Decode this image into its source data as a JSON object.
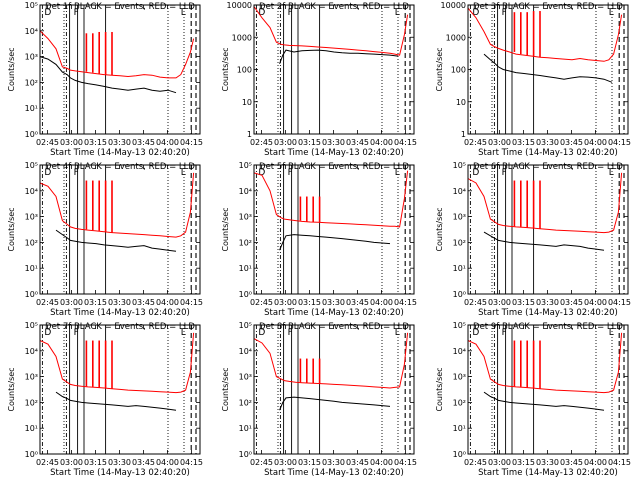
{
  "figure": {
    "xlabel": "Start Time (14-May-13 02:40:20)",
    "ylabel": "Counts/sec",
    "xticks": [
      "02:45",
      "03:00",
      "03:15",
      "03:30",
      "03:45",
      "04:00",
      "04:15"
    ],
    "xtick_minutes": [
      4.67,
      19.67,
      34.67,
      49.67,
      64.67,
      79.67,
      94.67
    ],
    "xlim_minutes": [
      0,
      100
    ],
    "colors": {
      "events": "#000000",
      "lld": "#ff0000",
      "frame": "#000000"
    },
    "markers": {
      "dash_dot_minutes": [
        1.5,
        16.5
      ],
      "solid_minutes": [
        18.5,
        23.5,
        27.5,
        41.0
      ],
      "dotted_minutes": [
        15.0,
        80.0,
        90.0
      ],
      "dashed_minutes": [
        94.5,
        97.5
      ],
      "corner_labels": [
        "D",
        "F",
        "L"
      ]
    }
  },
  "chart_data": [
    {
      "type": "line",
      "title": "Det 1f BLACK = Events, RED = LLD",
      "yscale": "log",
      "ylim": [
        1,
        100000
      ],
      "yticks": [
        "10⁰",
        "10¹",
        "10²",
        "10³",
        "10⁴",
        "10⁵"
      ],
      "yticks_exp": [
        0,
        1,
        2,
        3,
        4,
        5
      ],
      "events": {
        "x": [
          0,
          5,
          10,
          14,
          17,
          19,
          22,
          26,
          30,
          35,
          40,
          45,
          50,
          55,
          60,
          65,
          70,
          75,
          80,
          85
        ],
        "y": [
          1000,
          800,
          500,
          250,
          200,
          150,
          120,
          100,
          90,
          80,
          70,
          60,
          55,
          50,
          55,
          60,
          50,
          45,
          50,
          40
        ]
      },
      "lld": {
        "x": [
          0,
          5,
          10,
          14,
          17,
          19,
          22,
          26,
          30,
          35,
          40,
          45,
          50,
          55,
          60,
          65,
          70,
          75,
          80,
          85,
          88,
          91,
          94,
          96
        ],
        "y": [
          10000,
          5000,
          2000,
          400,
          350,
          300,
          280,
          260,
          240,
          220,
          200,
          190,
          180,
          170,
          180,
          200,
          190,
          160,
          150,
          150,
          200,
          500,
          1500,
          5000
        ]
      },
      "spikes": {
        "x": [
          29,
          33,
          37,
          41,
          45
        ],
        "y": [
          8000,
          8000,
          9000,
          9000,
          9000
        ]
      }
    },
    {
      "type": "line",
      "title": "Det 2f BLACK = Events, RED = LLD",
      "yscale": "log",
      "ylim": [
        1,
        10000
      ],
      "yticks": [
        "1",
        "10",
        "100",
        "1000",
        "10000"
      ],
      "yticks_exp": [
        0,
        1,
        2,
        3,
        4
      ],
      "events": {
        "x": [
          16,
          18,
          20,
          25,
          30,
          35,
          40,
          45,
          50,
          55,
          60,
          65,
          70,
          75,
          80,
          85,
          90
        ],
        "y": [
          150,
          280,
          400,
          350,
          380,
          390,
          400,
          380,
          350,
          330,
          320,
          320,
          310,
          300,
          290,
          280,
          260
        ]
      },
      "lld": {
        "x": [
          0,
          5,
          10,
          14,
          17,
          19,
          22,
          26,
          30,
          35,
          40,
          45,
          50,
          55,
          60,
          65,
          70,
          75,
          80,
          85,
          88,
          91,
          94,
          96
        ],
        "y": [
          9000,
          4000,
          2000,
          700,
          600,
          580,
          560,
          550,
          540,
          520,
          500,
          480,
          460,
          440,
          420,
          400,
          380,
          360,
          340,
          320,
          300,
          280,
          1200,
          5000
        ]
      },
      "spikes": {
        "x": [],
        "y": []
      }
    },
    {
      "type": "line",
      "title": "Det 3f BLACK = Events, RED = LLD",
      "yscale": "log",
      "ylim": [
        1,
        10000
      ],
      "yticks": [
        "1",
        "10",
        "100",
        "1000",
        "10000"
      ],
      "yticks_exp": [
        0,
        1,
        2,
        3,
        4
      ],
      "events": {
        "x": [
          10,
          14,
          17,
          19,
          22,
          26,
          30,
          35,
          40,
          45,
          50,
          55,
          60,
          65,
          70,
          75,
          80,
          85,
          90
        ],
        "y": [
          300,
          200,
          150,
          120,
          100,
          90,
          80,
          75,
          70,
          65,
          60,
          55,
          50,
          55,
          60,
          58,
          55,
          50,
          40
        ]
      },
      "lld": {
        "x": [
          0,
          5,
          10,
          14,
          17,
          19,
          22,
          26,
          30,
          35,
          40,
          45,
          50,
          55,
          60,
          65,
          70,
          75,
          80,
          85,
          88,
          91,
          94,
          96
        ],
        "y": [
          8000,
          4000,
          1500,
          600,
          500,
          450,
          400,
          350,
          300,
          280,
          260,
          240,
          230,
          220,
          210,
          200,
          220,
          200,
          190,
          180,
          200,
          300,
          1200,
          5000
        ]
      },
      "spikes": {
        "x": [
          29,
          33,
          37,
          41,
          45
        ],
        "y": [
          6000,
          6000,
          6000,
          6500,
          6500
        ]
      }
    },
    {
      "type": "line",
      "title": "Det 4f BLACK = Events, RED = LLD",
      "yscale": "log",
      "ylim": [
        1,
        100000
      ],
      "yticks": [
        "10⁰",
        "10¹",
        "10²",
        "10³",
        "10⁴",
        "10⁵"
      ],
      "yticks_exp": [
        0,
        1,
        2,
        3,
        4,
        5
      ],
      "events": {
        "x": [
          10,
          14,
          17,
          19,
          22,
          26,
          30,
          35,
          40,
          45,
          50,
          55,
          60,
          65,
          70,
          75,
          80,
          85
        ],
        "y": [
          300,
          200,
          150,
          120,
          110,
          100,
          95,
          90,
          80,
          75,
          70,
          65,
          70,
          75,
          60,
          55,
          50,
          45
        ]
      },
      "lld": {
        "x": [
          0,
          5,
          10,
          14,
          17,
          19,
          22,
          26,
          30,
          35,
          40,
          45,
          50,
          55,
          60,
          65,
          70,
          75,
          80,
          85,
          88,
          91,
          94,
          96
        ],
        "y": [
          20000,
          15000,
          6000,
          700,
          500,
          400,
          350,
          320,
          300,
          280,
          260,
          240,
          230,
          220,
          210,
          200,
          190,
          180,
          170,
          160,
          180,
          250,
          1500,
          50000
        ]
      },
      "spikes": {
        "x": [
          29,
          33,
          37,
          41,
          45
        ],
        "y": [
          25000,
          25000,
          25000,
          25000,
          25000
        ]
      }
    },
    {
      "type": "line",
      "title": "Det 5f BLACK = Events, RED = LLD",
      "yscale": "log",
      "ylim": [
        1,
        100000
      ],
      "yticks": [
        "10⁰",
        "10¹",
        "10²",
        "10³",
        "10⁴",
        "10⁵"
      ],
      "yticks_exp": [
        0,
        1,
        2,
        3,
        4,
        5
      ],
      "events": {
        "x": [
          16,
          18,
          20,
          25,
          30,
          35,
          40,
          45,
          50,
          55,
          60,
          65,
          70,
          75,
          80,
          85
        ],
        "y": [
          50,
          100,
          180,
          200,
          190,
          180,
          170,
          160,
          150,
          140,
          130,
          120,
          110,
          100,
          95,
          90
        ]
      },
      "lld": {
        "x": [
          0,
          5,
          10,
          14,
          17,
          19,
          22,
          26,
          30,
          35,
          40,
          45,
          50,
          55,
          60,
          65,
          70,
          75,
          80,
          85,
          88,
          91,
          94,
          96
        ],
        "y": [
          50000,
          40000,
          10000,
          1200,
          900,
          800,
          750,
          700,
          650,
          620,
          600,
          580,
          560,
          540,
          520,
          500,
          480,
          460,
          440,
          420,
          420,
          400,
          5000,
          60000
        ]
      },
      "spikes": {
        "x": [
          29,
          33,
          37,
          41
        ],
        "y": [
          6000,
          6000,
          6000,
          6000
        ]
      }
    },
    {
      "type": "line",
      "title": "Det 6f BLACK = Events, RED = LLD",
      "yscale": "log",
      "ylim": [
        1,
        100000
      ],
      "yticks": [
        "10⁰",
        "10¹",
        "10²",
        "10³",
        "10⁴",
        "10⁵"
      ],
      "yticks_exp": [
        0,
        1,
        2,
        3,
        4,
        5
      ],
      "events": {
        "x": [
          10,
          14,
          17,
          19,
          22,
          26,
          30,
          35,
          40,
          45,
          50,
          55,
          60,
          65,
          70,
          75,
          80,
          85
        ],
        "y": [
          250,
          180,
          140,
          120,
          110,
          100,
          95,
          90,
          85,
          80,
          75,
          70,
          80,
          75,
          70,
          60,
          55,
          50
        ]
      },
      "lld": {
        "x": [
          0,
          5,
          10,
          14,
          17,
          19,
          22,
          26,
          30,
          35,
          40,
          45,
          50,
          55,
          60,
          65,
          70,
          75,
          80,
          85,
          88,
          91,
          94,
          96
        ],
        "y": [
          30000,
          20000,
          6000,
          800,
          600,
          500,
          450,
          420,
          400,
          380,
          360,
          340,
          320,
          300,
          290,
          280,
          270,
          260,
          250,
          240,
          250,
          300,
          1500,
          50000
        ]
      },
      "spikes": {
        "x": [
          29,
          33,
          37,
          41,
          45
        ],
        "y": [
          25000,
          25000,
          25000,
          25000,
          25000
        ]
      }
    },
    {
      "type": "line",
      "title": "Det 7f BLACK = Events, RED = LLD",
      "yscale": "log",
      "ylim": [
        1,
        100000
      ],
      "yticks": [
        "10⁰",
        "10¹",
        "10²",
        "10³",
        "10⁴",
        "10⁵"
      ],
      "yticks_exp": [
        0,
        1,
        2,
        3,
        4,
        5
      ],
      "events": {
        "x": [
          10,
          14,
          17,
          19,
          22,
          26,
          30,
          35,
          40,
          45,
          50,
          55,
          60,
          65,
          70,
          75,
          80,
          85
        ],
        "y": [
          250,
          170,
          140,
          120,
          110,
          100,
          95,
          90,
          85,
          80,
          75,
          70,
          75,
          70,
          65,
          60,
          55,
          50
        ]
      },
      "lld": {
        "x": [
          0,
          5,
          10,
          14,
          17,
          19,
          22,
          26,
          30,
          35,
          40,
          45,
          50,
          55,
          60,
          65,
          70,
          75,
          80,
          85,
          88,
          91,
          94,
          96
        ],
        "y": [
          25000,
          18000,
          6000,
          800,
          600,
          500,
          450,
          420,
          400,
          380,
          360,
          340,
          320,
          300,
          290,
          280,
          270,
          260,
          250,
          240,
          250,
          300,
          1500,
          50000
        ]
      },
      "spikes": {
        "x": [
          29,
          33,
          37,
          41,
          45
        ],
        "y": [
          25000,
          25000,
          25000,
          25000,
          25000
        ]
      }
    },
    {
      "type": "line",
      "title": "Det 8f BLACK = Events, RED = LLD",
      "yscale": "log",
      "ylim": [
        1,
        100000
      ],
      "yticks": [
        "10⁰",
        "10¹",
        "10²",
        "10³",
        "10⁴",
        "10⁵"
      ],
      "yticks_exp": [
        0,
        1,
        2,
        3,
        4,
        5
      ],
      "events": {
        "x": [
          16,
          18,
          20,
          25,
          30,
          35,
          40,
          45,
          50,
          55,
          60,
          65,
          70,
          75,
          80,
          85
        ],
        "y": [
          50,
          100,
          150,
          160,
          150,
          140,
          130,
          120,
          110,
          100,
          95,
          90,
          85,
          80,
          75,
          70
        ]
      },
      "lld": {
        "x": [
          0,
          5,
          10,
          14,
          17,
          19,
          22,
          26,
          30,
          35,
          40,
          45,
          50,
          55,
          60,
          65,
          70,
          75,
          80,
          85,
          88,
          91,
          94,
          96
        ],
        "y": [
          30000,
          20000,
          8000,
          1000,
          800,
          700,
          650,
          600,
          580,
          560,
          540,
          520,
          500,
          480,
          460,
          440,
          420,
          400,
          380,
          360,
          380,
          400,
          3000,
          50000
        ]
      },
      "spikes": {
        "x": [
          29,
          33,
          37,
          41
        ],
        "y": [
          5000,
          5000,
          5000,
          5000
        ]
      }
    },
    {
      "type": "line",
      "title": "Det 9f BLACK = Events, RED = LLD",
      "yscale": "log",
      "ylim": [
        1,
        100000
      ],
      "yticks": [
        "10⁰",
        "10¹",
        "10²",
        "10³",
        "10⁴",
        "10⁵"
      ],
      "yticks_exp": [
        0,
        1,
        2,
        3,
        4,
        5
      ],
      "events": {
        "x": [
          10,
          14,
          17,
          19,
          22,
          26,
          30,
          35,
          40,
          45,
          50,
          55,
          60,
          65,
          70,
          75,
          80,
          85
        ],
        "y": [
          250,
          170,
          140,
          120,
          110,
          100,
          95,
          90,
          85,
          80,
          75,
          70,
          75,
          70,
          65,
          60,
          55,
          50
        ]
      },
      "lld": {
        "x": [
          0,
          5,
          10,
          14,
          17,
          19,
          22,
          26,
          30,
          35,
          40,
          45,
          50,
          55,
          60,
          65,
          70,
          75,
          80,
          85,
          88,
          91,
          94,
          96
        ],
        "y": [
          25000,
          18000,
          6000,
          800,
          600,
          500,
          450,
          420,
          400,
          380,
          360,
          340,
          320,
          300,
          290,
          280,
          270,
          260,
          250,
          240,
          250,
          300,
          1500,
          50000
        ]
      },
      "spikes": {
        "x": [
          29,
          33,
          37,
          41,
          45
        ],
        "y": [
          25000,
          25000,
          25000,
          25000,
          25000
        ]
      }
    }
  ]
}
